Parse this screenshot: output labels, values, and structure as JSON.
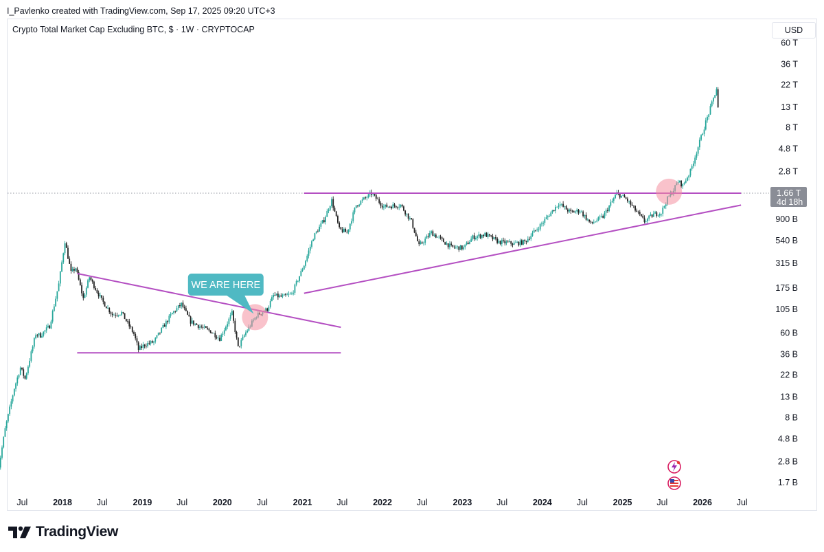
{
  "header": {
    "caption": "I_Pavlenko created with TradingView.com, Sep 17, 2025 09:20 UTC+3",
    "symbol_title": "Crypto Total Market Cap Excluding BTC, $ · 1W · CRYPTOCAP",
    "currency_button": "USD"
  },
  "branding": {
    "name": "TradingView"
  },
  "colors": {
    "bull": "#26a69a",
    "bull_light": "#7fd6c6",
    "bear": "#222222",
    "trendline": "#b44fc2",
    "annotation_bubble": "#4fb9c3",
    "highlight": "#f48fa0"
  },
  "annotation": {
    "text": "WE ARE HERE"
  },
  "chart_data": {
    "type": "candlestick",
    "title": "Crypto Total Market Cap Excluding BTC, $ · 1W · CRYPTOCAP",
    "interval": "1W",
    "y_scale": "log",
    "y_ticks": [
      {
        "label": "60 T",
        "value": 60000000000000.0
      },
      {
        "label": "36 T",
        "value": 36000000000000.0
      },
      {
        "label": "22 T",
        "value": 22000000000000.0
      },
      {
        "label": "13 T",
        "value": 13000000000000.0
      },
      {
        "label": "8 T",
        "value": 8000000000000.0
      },
      {
        "label": "4.8 T",
        "value": 4800000000000.0
      },
      {
        "label": "2.8 T",
        "value": 2800000000000.0
      },
      {
        "label": "900 B",
        "value": 900000000000.0
      },
      {
        "label": "540 B",
        "value": 540000000000.0
      },
      {
        "label": "315 B",
        "value": 315000000000.0
      },
      {
        "label": "175 B",
        "value": 175000000000.0
      },
      {
        "label": "105 B",
        "value": 105000000000.0
      },
      {
        "label": "60 B",
        "value": 60000000000.0
      },
      {
        "label": "36 B",
        "value": 36000000000.0
      },
      {
        "label": "22 B",
        "value": 22000000000.0
      },
      {
        "label": "13 B",
        "value": 13000000000.0
      },
      {
        "label": "8 B",
        "value": 8000000000.0
      },
      {
        "label": "4.8 B",
        "value": 4800000000.0
      },
      {
        "label": "2.8 B",
        "value": 2800000000.0
      },
      {
        "label": "1.7 B",
        "value": 1700000000.0
      }
    ],
    "x_ticks": [
      {
        "label": "Jul",
        "date": "2017-07-01",
        "bold": false
      },
      {
        "label": "2018",
        "date": "2018-01-01",
        "bold": true
      },
      {
        "label": "Jul",
        "date": "2018-07-01",
        "bold": false
      },
      {
        "label": "2019",
        "date": "2019-01-01",
        "bold": true
      },
      {
        "label": "Jul",
        "date": "2019-07-01",
        "bold": false
      },
      {
        "label": "2020",
        "date": "2020-01-01",
        "bold": true
      },
      {
        "label": "Jul",
        "date": "2020-07-01",
        "bold": false
      },
      {
        "label": "2021",
        "date": "2021-01-01",
        "bold": true
      },
      {
        "label": "Jul",
        "date": "2021-07-01",
        "bold": false
      },
      {
        "label": "2022",
        "date": "2022-01-01",
        "bold": true
      },
      {
        "label": "Jul",
        "date": "2022-07-01",
        "bold": false
      },
      {
        "label": "2023",
        "date": "2023-01-01",
        "bold": true
      },
      {
        "label": "Jul",
        "date": "2023-07-01",
        "bold": false
      },
      {
        "label": "2024",
        "date": "2024-01-01",
        "bold": true
      },
      {
        "label": "Jul",
        "date": "2024-07-01",
        "bold": false
      },
      {
        "label": "2025",
        "date": "2025-01-01",
        "bold": true
      },
      {
        "label": "Jul",
        "date": "2025-07-01",
        "bold": false
      },
      {
        "label": "2026",
        "date": "2026-01-01",
        "bold": true
      },
      {
        "label": "Jul",
        "date": "2026-07-01",
        "bold": false
      }
    ],
    "price_path": [
      {
        "date": "2017-03-10",
        "value": 2000000000.0
      },
      {
        "date": "2017-04-14",
        "value": 6000000000.0
      },
      {
        "date": "2017-05-26",
        "value": 16000000000.0
      },
      {
        "date": "2017-06-23",
        "value": 26000000000.0
      },
      {
        "date": "2017-07-14",
        "value": 20000000000.0
      },
      {
        "date": "2017-09-01",
        "value": 58000000000.0
      },
      {
        "date": "2017-09-22",
        "value": 56000000000.0
      },
      {
        "date": "2017-11-03",
        "value": 70000000000.0
      },
      {
        "date": "2017-12-15",
        "value": 190000000000.0
      },
      {
        "date": "2018-01-12",
        "value": 530000000000.0
      },
      {
        "date": "2018-02-09",
        "value": 250000000000.0
      },
      {
        "date": "2018-03-02",
        "value": 280000000000.0
      },
      {
        "date": "2018-04-06",
        "value": 135000000000.0
      },
      {
        "date": "2018-05-04",
        "value": 225000000000.0
      },
      {
        "date": "2018-06-29",
        "value": 130000000000.0
      },
      {
        "date": "2018-08-17",
        "value": 92000000000.0
      },
      {
        "date": "2018-09-28",
        "value": 96000000000.0
      },
      {
        "date": "2018-11-23",
        "value": 58000000000.0
      },
      {
        "date": "2018-12-14",
        "value": 40000000000.0
      },
      {
        "date": "2019-01-11",
        "value": 45000000000.0
      },
      {
        "date": "2019-02-22",
        "value": 48000000000.0
      },
      {
        "date": "2019-04-05",
        "value": 68000000000.0
      },
      {
        "date": "2019-05-17",
        "value": 95000000000.0
      },
      {
        "date": "2019-06-28",
        "value": 118000000000.0
      },
      {
        "date": "2019-08-09",
        "value": 78000000000.0
      },
      {
        "date": "2019-09-27",
        "value": 68000000000.0
      },
      {
        "date": "2019-11-08",
        "value": 62000000000.0
      },
      {
        "date": "2019-12-20",
        "value": 52000000000.0
      },
      {
        "date": "2020-02-14",
        "value": 95000000000.0
      },
      {
        "date": "2020-03-13",
        "value": 42000000000.0
      },
      {
        "date": "2020-04-17",
        "value": 60000000000.0
      },
      {
        "date": "2020-06-05",
        "value": 90000000000.0
      },
      {
        "date": "2020-07-24",
        "value": 105000000000.0
      },
      {
        "date": "2020-08-21",
        "value": 145000000000.0
      },
      {
        "date": "2020-10-02",
        "value": 140000000000.0
      },
      {
        "date": "2020-11-13",
        "value": 150000000000.0
      },
      {
        "date": "2021-01-08",
        "value": 300000000000.0
      },
      {
        "date": "2021-02-19",
        "value": 580000000000.0
      },
      {
        "date": "2021-04-09",
        "value": 880000000000.0
      },
      {
        "date": "2021-05-14",
        "value": 1400000000000.0
      },
      {
        "date": "2021-06-18",
        "value": 700000000000.0
      },
      {
        "date": "2021-07-23",
        "value": 650000000000.0
      },
      {
        "date": "2021-09-03",
        "value": 1250000000000.0
      },
      {
        "date": "2021-11-12",
        "value": 1650000000000.0
      },
      {
        "date": "2022-01-07",
        "value": 1200000000000.0
      },
      {
        "date": "2022-03-25",
        "value": 1250000000000.0
      },
      {
        "date": "2022-05-13",
        "value": 850000000000.0
      },
      {
        "date": "2022-06-17",
        "value": 470000000000.0
      },
      {
        "date": "2022-08-12",
        "value": 650000000000.0
      },
      {
        "date": "2022-11-11",
        "value": 460000000000.0
      },
      {
        "date": "2023-01-06",
        "value": 450000000000.0
      },
      {
        "date": "2023-02-17",
        "value": 580000000000.0
      },
      {
        "date": "2023-04-14",
        "value": 620000000000.0
      },
      {
        "date": "2023-06-16",
        "value": 520000000000.0
      },
      {
        "date": "2023-08-25",
        "value": 500000000000.0
      },
      {
        "date": "2023-10-13",
        "value": 520000000000.0
      },
      {
        "date": "2023-12-29",
        "value": 800000000000.0
      },
      {
        "date": "2024-03-15",
        "value": 1300000000000.0
      },
      {
        "date": "2024-05-10",
        "value": 1050000000000.0
      },
      {
        "date": "2024-06-21",
        "value": 1100000000000.0
      },
      {
        "date": "2024-08-09",
        "value": 800000000000.0
      },
      {
        "date": "2024-10-04",
        "value": 950000000000.0
      },
      {
        "date": "2024-12-06",
        "value": 1650000000000.0
      },
      {
        "date": "2025-01-17",
        "value": 1450000000000.0
      },
      {
        "date": "2025-04-11",
        "value": 850000000000.0
      },
      {
        "date": "2025-05-23",
        "value": 1000000000000.0
      },
      {
        "date": "2025-06-27",
        "value": 1050000000000.0
      },
      {
        "date": "2025-07-25",
        "value": 1450000000000.0
      },
      {
        "date": "2025-08-22",
        "value": 1800000000000.0
      },
      {
        "date": "2025-09-12",
        "value": 2200000000000.0
      },
      {
        "date": "2025-10-03",
        "value": 2000000000000.0
      },
      {
        "date": "2025-11-07",
        "value": 2800000000000.0
      },
      {
        "date": "2025-12-12",
        "value": 5000000000000.0
      },
      {
        "date": "2026-01-16",
        "value": 9000000000000.0
      },
      {
        "date": "2026-02-13",
        "value": 14000000000000.0
      },
      {
        "date": "2026-03-06",
        "value": 20000000000000.0
      },
      {
        "date": "2026-03-13",
        "value": 12500000000000.0
      }
    ],
    "trendlines": [
      {
        "name": "",
        "from": {
          "date": "2018-03-09",
          "value": 245000000000.0
        },
        "to": {
          "date": "2021-06-25",
          "value": 68000000000.0
        }
      },
      {
        "name": "",
        "from": {
          "date": "2018-03-09",
          "value": 37000000000.0
        },
        "to": {
          "date": "2021-06-25",
          "value": 37000000000.0
        }
      },
      {
        "name": "",
        "from": {
          "date": "2021-01-08",
          "value": 1660000000000.0
        },
        "to": {
          "date": "2026-06-26",
          "value": 1660000000000.0
        }
      },
      {
        "name": "",
        "from": {
          "date": "2021-01-08",
          "value": 153000000000.0
        },
        "to": {
          "date": "2026-06-26",
          "value": 1250000000000.0
        }
      }
    ],
    "highlights": [
      {
        "date": "2020-05-29",
        "value": 86500000000.0
      },
      {
        "date": "2025-08-01",
        "value": 1720000000000.0
      }
    ],
    "callout": {
      "date": "2020-03-13",
      "text": "WE ARE HERE",
      "points_to": {
        "date": "2020-05-29",
        "value": 86500000000.0
      }
    },
    "current_price": {
      "value": 1660000000000.0,
      "label": "1.66 T",
      "countdown": "4d 18h"
    }
  }
}
